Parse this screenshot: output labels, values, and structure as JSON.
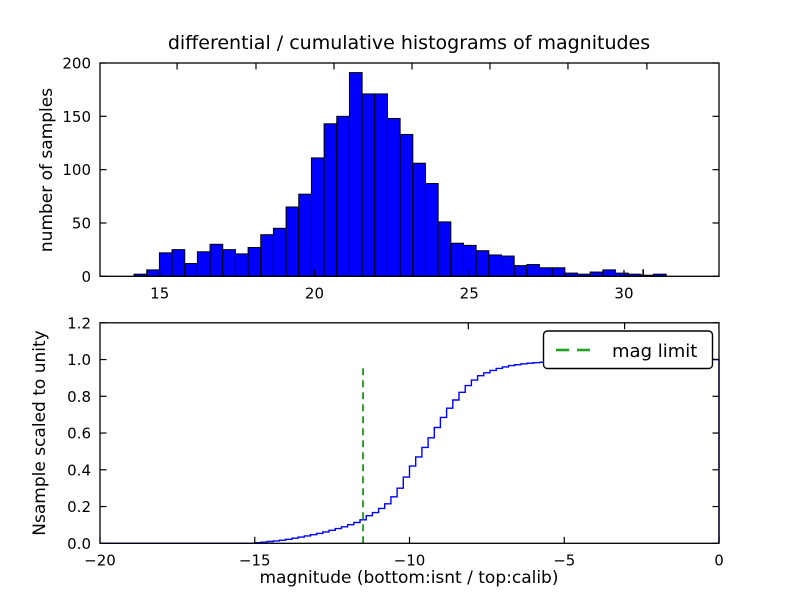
{
  "figure": {
    "title": "differential / cumulative histograms of magnitudes",
    "background": "#ffffff"
  },
  "colors": {
    "bar_fill": "#0000ff",
    "bar_edge": "#000000",
    "curve": "#0000ff",
    "mag_limit_green": "#22a022",
    "axis": "#000000",
    "legend_bg": "#ffffff"
  },
  "chart_data": [
    {
      "type": "bar",
      "name": "differential-histogram",
      "ylabel": "number of samples",
      "xlim": [
        13.07,
        33.07
      ],
      "ylim": [
        0,
        200
      ],
      "grid": false,
      "xticks": {
        "values": [
          15,
          20,
          25,
          30
        ],
        "labels": [
          "15",
          "20",
          "25",
          "30"
        ]
      },
      "yticks": {
        "values": [
          0,
          50,
          100,
          150,
          200
        ],
        "labels": [
          "0",
          "50",
          "100",
          "150",
          "200"
        ]
      },
      "secondary_top_ticks": [
        15.56,
        18.11,
        20.63,
        23.15,
        25.67,
        28.19,
        30.74
      ],
      "stray_bottom_tick": 30.62,
      "bins": {
        "start": 14.17,
        "width": 0.4094
      },
      "counts": [
        2,
        6,
        22,
        25,
        12,
        23,
        30,
        25,
        21,
        27,
        39,
        45,
        65,
        77,
        111,
        143,
        150,
        191,
        171,
        171,
        148,
        133,
        106,
        87,
        51,
        31,
        29,
        24,
        20,
        19,
        10,
        11,
        8,
        8,
        3,
        2,
        4,
        6,
        3,
        2,
        1,
        2
      ]
    },
    {
      "type": "line",
      "name": "cumulative-histogram",
      "style": "step",
      "xlabel": "magnitude (bottom:isnt / top:calib)",
      "ylabel": "Nsample scaled to unity",
      "xlim": [
        -20,
        0
      ],
      "ylim": [
        0,
        1.2
      ],
      "grid": false,
      "xticks": {
        "values": [
          -20,
          -15,
          -10,
          -5,
          0
        ],
        "labels": [
          "−20",
          "−15",
          "−10",
          "−5",
          "0"
        ]
      },
      "yticks": {
        "values": [
          0,
          0.2,
          0.4,
          0.6,
          0.8,
          1.0,
          1.2
        ],
        "labels": [
          "0.0",
          "0.2",
          "0.4",
          "0.6",
          "0.8",
          "1.0",
          "1.2"
        ]
      },
      "secondary_top_ticks": [
        -8.1,
        -3.05
      ],
      "mag_limit": {
        "x": -11.5,
        "ymin": 0,
        "ymax": 0.955,
        "label": "mag limit"
      },
      "legend": {
        "label": "mag limit",
        "position": "upper right"
      },
      "steps": [
        [
          -15.0,
          0.003
        ],
        [
          -14.8,
          0.006
        ],
        [
          -14.6,
          0.01
        ],
        [
          -14.4,
          0.013
        ],
        [
          -14.2,
          0.017
        ],
        [
          -14.0,
          0.022
        ],
        [
          -13.8,
          0.028
        ],
        [
          -13.6,
          0.034
        ],
        [
          -13.4,
          0.04
        ],
        [
          -13.2,
          0.047
        ],
        [
          -13.0,
          0.054
        ],
        [
          -12.8,
          0.062
        ],
        [
          -12.6,
          0.071
        ],
        [
          -12.4,
          0.08
        ],
        [
          -12.2,
          0.09
        ],
        [
          -12.0,
          0.101
        ],
        [
          -11.8,
          0.113
        ],
        [
          -11.6,
          0.128
        ],
        [
          -11.4,
          0.15
        ],
        [
          -11.2,
          0.167
        ],
        [
          -11.0,
          0.19
        ],
        [
          -10.8,
          0.215
        ],
        [
          -10.6,
          0.253
        ],
        [
          -10.4,
          0.3
        ],
        [
          -10.2,
          0.36
        ],
        [
          -10.0,
          0.42
        ],
        [
          -9.8,
          0.47
        ],
        [
          -9.6,
          0.522
        ],
        [
          -9.4,
          0.574
        ],
        [
          -9.2,
          0.63
        ],
        [
          -9.0,
          0.685
        ],
        [
          -8.8,
          0.735
        ],
        [
          -8.6,
          0.78
        ],
        [
          -8.4,
          0.822
        ],
        [
          -8.2,
          0.858
        ],
        [
          -8.0,
          0.888
        ],
        [
          -7.8,
          0.912
        ],
        [
          -7.6,
          0.928
        ],
        [
          -7.4,
          0.941
        ],
        [
          -7.2,
          0.952
        ],
        [
          -7.0,
          0.96
        ],
        [
          -6.8,
          0.967
        ],
        [
          -6.6,
          0.972
        ],
        [
          -6.4,
          0.977
        ],
        [
          -6.2,
          0.98
        ],
        [
          -6.0,
          0.983
        ],
        [
          -5.8,
          0.985
        ],
        [
          -5.6,
          0.987
        ],
        [
          -5.4,
          0.988
        ],
        [
          -5.2,
          0.989
        ],
        [
          -5.0,
          0.99
        ],
        [
          -4.6,
          0.991
        ],
        [
          -4.2,
          0.992
        ],
        [
          -3.8,
          0.993
        ],
        [
          -3.4,
          0.994
        ],
        [
          -3.0,
          0.995
        ],
        [
          -2.6,
          0.996
        ],
        [
          -2.2,
          0.997
        ],
        [
          -1.6,
          0.998
        ],
        [
          -1.0,
          0.999
        ],
        [
          -0.4,
          1.0
        ]
      ]
    }
  ]
}
